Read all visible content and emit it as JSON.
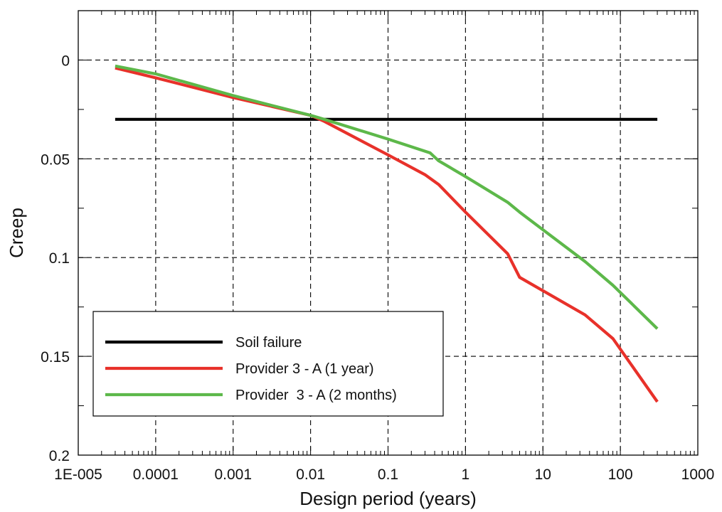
{
  "chart_data": {
    "type": "line",
    "xlabel": "Design period (years)",
    "ylabel": "Creep",
    "x_scale": "log",
    "xlim": [
      1e-05,
      1000
    ],
    "ylim": [
      0.2,
      -0.025
    ],
    "y_inverted": true,
    "x_tick_labels": [
      "1E-005",
      "0.0001",
      "0.001",
      "0.01",
      "0.1",
      "1",
      "10",
      "100",
      "1000"
    ],
    "x_tick_values": [
      1e-05,
      0.0001,
      0.001,
      0.01,
      0.1,
      1,
      10,
      100,
      1000
    ],
    "y_tick_labels": [
      "0",
      "0.05",
      "0.1",
      "0.15",
      "0.2"
    ],
    "y_tick_values": [
      0,
      0.05,
      0.1,
      0.15,
      0.2
    ],
    "grid": true,
    "legend_position": "bottom-left",
    "series": [
      {
        "name": "Soil failure",
        "color": "#000000",
        "x": [
          3e-05,
          300
        ],
        "y": [
          0.03,
          0.03
        ]
      },
      {
        "name": "Provider 3 - A (1 year)",
        "color": "#e8312a",
        "x": [
          3e-05,
          0.0001,
          0.001,
          0.01,
          0.015,
          0.1,
          0.3,
          0.45,
          1,
          3.5,
          5,
          35,
          80,
          300
        ],
        "y": [
          0.004,
          0.009,
          0.019,
          0.028,
          0.031,
          0.048,
          0.058,
          0.063,
          0.077,
          0.098,
          0.11,
          0.129,
          0.141,
          0.173
        ]
      },
      {
        "name": "Provider  3 - A (2 months)",
        "color": "#5db84a",
        "x": [
          3e-05,
          0.0001,
          0.001,
          0.01,
          0.015,
          0.1,
          0.35,
          0.45,
          1,
          3.5,
          5,
          35,
          80,
          300
        ],
        "y": [
          0.003,
          0.007,
          0.018,
          0.028,
          0.03,
          0.04,
          0.047,
          0.051,
          0.059,
          0.072,
          0.077,
          0.102,
          0.114,
          0.136
        ]
      }
    ]
  }
}
